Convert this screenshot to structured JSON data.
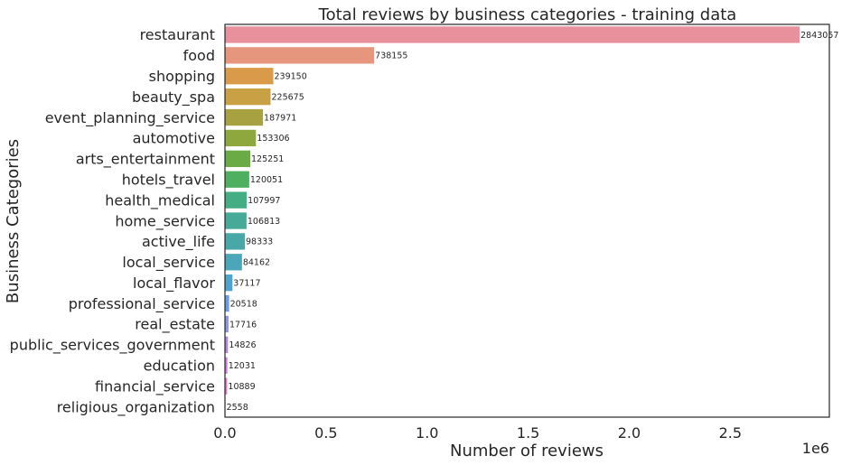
{
  "chart_data": {
    "type": "bar",
    "orientation": "horizontal",
    "title": "Total reviews by business categories - training data",
    "xlabel": "Number of reviews",
    "ylabel": "Business Categories",
    "x_offset_label": "1e6",
    "xlim": [
      0,
      2990000
    ],
    "x_ticks": [
      0,
      500000,
      1000000,
      1500000,
      2000000,
      2500000
    ],
    "x_tick_labels": [
      "0.0",
      "0.5",
      "1.0",
      "1.5",
      "2.0",
      "2.5"
    ],
    "grid": false,
    "categories": [
      "restaurant",
      "food",
      "shopping",
      "beauty_spa",
      "event_planning_service",
      "automotive",
      "arts_entertainment",
      "hotels_travel",
      "health_medical",
      "home_service",
      "active_life",
      "local_service",
      "local_flavor",
      "professional_service",
      "real_estate",
      "public_services_government",
      "education",
      "financial_service",
      "religious_organization"
    ],
    "values": [
      2843057,
      738155,
      239150,
      225675,
      187971,
      153306,
      125251,
      120051,
      107997,
      106813,
      98333,
      84162,
      37117,
      20518,
      17716,
      14826,
      12031,
      10889,
      2558
    ],
    "colors": [
      "#e8919c",
      "#e6967c",
      "#d99a4a",
      "#c9a043",
      "#a8a141",
      "#8fa83e",
      "#6aab46",
      "#4daf5f",
      "#44ad83",
      "#47aa98",
      "#48a8a8",
      "#4aa6b8",
      "#4fa3cf",
      "#6a9fe0",
      "#8f96e0",
      "#ad8ae0",
      "#cf7fe0",
      "#e07ccc",
      "#e685ad"
    ]
  }
}
